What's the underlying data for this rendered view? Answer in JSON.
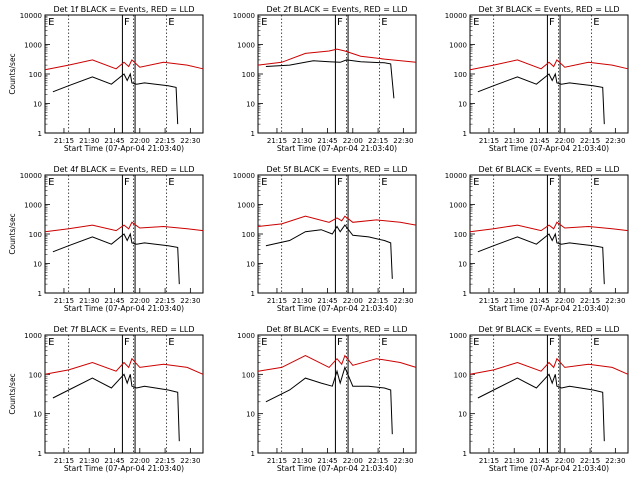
{
  "chart_data": [
    {
      "type": "line",
      "title": "Det 1f BLACK = Events, RED = LLD",
      "ylabel": "Counts/sec",
      "xlabel": "Start Time (07-Apr-04 21:03:40)",
      "ylim": [
        1,
        10000
      ],
      "yscale": "log",
      "yticks": [
        "1",
        "10",
        "100",
        "1000",
        "10000"
      ],
      "xticks": [
        "21:15",
        "21:30",
        "21:45",
        "22:00",
        "22:15",
        "22:30"
      ],
      "markers": [
        "E",
        "F",
        "E"
      ],
      "series": [
        {
          "color": "#000000",
          "x": [
            0.05,
            0.15,
            0.3,
            0.42,
            0.5,
            0.52,
            0.54,
            0.55,
            0.58,
            0.63,
            0.7,
            0.78,
            0.83,
            0.84
          ],
          "y": [
            25,
            40,
            80,
            45,
            100,
            60,
            100,
            50,
            45,
            50,
            45,
            40,
            35,
            2
          ]
        },
        {
          "color": "#cc0000",
          "x": [
            0.0,
            0.15,
            0.3,
            0.45,
            0.5,
            0.53,
            0.55,
            0.6,
            0.75,
            0.9,
            1.0
          ],
          "y": [
            140,
            200,
            300,
            150,
            250,
            180,
            300,
            170,
            250,
            200,
            150
          ]
        }
      ]
    },
    {
      "type": "line",
      "title": "Det 2f BLACK = Events, RED = LLD",
      "ylabel": "",
      "xlabel": "Start Time (07-Apr-04 21:03:40)",
      "ylim": [
        1,
        10000
      ],
      "yscale": "log",
      "yticks": [
        "1",
        "10",
        "100",
        "1000",
        "10000"
      ],
      "xticks": [
        "21:15",
        "21:30",
        "21:45",
        "22:00",
        "22:15",
        "22:30"
      ],
      "markers": [
        "E",
        "F",
        "E"
      ],
      "series": [
        {
          "color": "#000000",
          "x": [
            0.05,
            0.2,
            0.35,
            0.45,
            0.52,
            0.56,
            0.65,
            0.8,
            0.84,
            0.86
          ],
          "y": [
            180,
            200,
            280,
            260,
            250,
            300,
            260,
            240,
            220,
            15
          ]
        },
        {
          "color": "#cc0000",
          "x": [
            0.0,
            0.15,
            0.3,
            0.45,
            0.5,
            0.55,
            0.65,
            0.8,
            1.0
          ],
          "y": [
            200,
            250,
            500,
            600,
            700,
            600,
            400,
            320,
            250
          ]
        }
      ]
    },
    {
      "type": "line",
      "title": "Det 3f BLACK = Events, RED = LLD",
      "ylabel": "",
      "xlabel": "Start Time (07-Apr-04 21:03:40)",
      "ylim": [
        1,
        10000
      ],
      "yscale": "log",
      "yticks": [
        "1",
        "10",
        "100",
        "1000",
        "10000"
      ],
      "xticks": [
        "21:15",
        "21:30",
        "21:45",
        "22:00",
        "22:15",
        "22:30"
      ],
      "markers": [
        "E",
        "F",
        "E"
      ],
      "series": [
        {
          "color": "#000000",
          "x": [
            0.05,
            0.15,
            0.3,
            0.42,
            0.5,
            0.52,
            0.54,
            0.55,
            0.58,
            0.63,
            0.7,
            0.78,
            0.84,
            0.85
          ],
          "y": [
            25,
            40,
            80,
            45,
            100,
            60,
            100,
            50,
            45,
            50,
            45,
            40,
            35,
            2
          ]
        },
        {
          "color": "#cc0000",
          "x": [
            0.0,
            0.15,
            0.3,
            0.45,
            0.5,
            0.53,
            0.55,
            0.6,
            0.75,
            0.9,
            1.0
          ],
          "y": [
            140,
            200,
            300,
            150,
            250,
            180,
            300,
            170,
            250,
            200,
            150
          ]
        }
      ]
    },
    {
      "type": "line",
      "title": "Det 4f BLACK = Events, RED = LLD",
      "ylabel": "Counts/sec",
      "xlabel": "Start Time (07-Apr-04 21:03:40)",
      "ylim": [
        1,
        10000
      ],
      "yscale": "log",
      "yticks": [
        "1",
        "10",
        "100",
        "1000",
        "10000"
      ],
      "xticks": [
        "21:15",
        "21:30",
        "21:45",
        "22:00",
        "22:15",
        "22:30"
      ],
      "markers": [
        "E",
        "F",
        "E"
      ],
      "series": [
        {
          "color": "#000000",
          "x": [
            0.05,
            0.15,
            0.3,
            0.42,
            0.5,
            0.52,
            0.54,
            0.55,
            0.58,
            0.63,
            0.7,
            0.78,
            0.84,
            0.85
          ],
          "y": [
            25,
            40,
            80,
            45,
            100,
            60,
            100,
            50,
            45,
            50,
            45,
            40,
            35,
            2
          ]
        },
        {
          "color": "#cc0000",
          "x": [
            0.0,
            0.15,
            0.3,
            0.45,
            0.5,
            0.53,
            0.55,
            0.6,
            0.75,
            0.9,
            1.0
          ],
          "y": [
            120,
            150,
            200,
            130,
            200,
            150,
            250,
            160,
            180,
            150,
            130
          ]
        }
      ]
    },
    {
      "type": "line",
      "title": "Det 5f BLACK = Events, RED = LLD",
      "ylabel": "",
      "xlabel": "Start Time (07-Apr-04 21:03:40)",
      "ylim": [
        1,
        10000
      ],
      "yscale": "log",
      "yticks": [
        "1",
        "10",
        "100",
        "1000",
        "10000"
      ],
      "xticks": [
        "21:15",
        "21:30",
        "21:45",
        "22:00",
        "22:15",
        "22:30"
      ],
      "markers": [
        "E",
        "F",
        "E"
      ],
      "series": [
        {
          "color": "#000000",
          "x": [
            0.05,
            0.2,
            0.3,
            0.4,
            0.47,
            0.5,
            0.52,
            0.55,
            0.6,
            0.7,
            0.8,
            0.84,
            0.85
          ],
          "y": [
            40,
            60,
            120,
            140,
            100,
            180,
            120,
            200,
            90,
            80,
            60,
            50,
            3
          ]
        },
        {
          "color": "#cc0000",
          "x": [
            0.0,
            0.15,
            0.3,
            0.45,
            0.5,
            0.53,
            0.55,
            0.6,
            0.75,
            0.9,
            1.0
          ],
          "y": [
            180,
            220,
            400,
            250,
            350,
            280,
            400,
            250,
            300,
            250,
            200
          ]
        }
      ]
    },
    {
      "type": "line",
      "title": "Det 6f BLACK = Events, RED = LLD",
      "ylabel": "",
      "xlabel": "Start Time (07-Apr-04 21:03:40)",
      "ylim": [
        1,
        10000
      ],
      "yscale": "log",
      "yticks": [
        "1",
        "10",
        "100",
        "1000",
        "10000"
      ],
      "xticks": [
        "21:15",
        "21:30",
        "21:45",
        "22:00",
        "22:15",
        "22:30"
      ],
      "markers": [
        "E",
        "F",
        "E"
      ],
      "series": [
        {
          "color": "#000000",
          "x": [
            0.05,
            0.15,
            0.3,
            0.42,
            0.5,
            0.52,
            0.54,
            0.55,
            0.58,
            0.63,
            0.7,
            0.78,
            0.84,
            0.85
          ],
          "y": [
            25,
            40,
            80,
            45,
            100,
            60,
            100,
            50,
            45,
            50,
            45,
            40,
            35,
            2
          ]
        },
        {
          "color": "#cc0000",
          "x": [
            0.0,
            0.15,
            0.3,
            0.45,
            0.5,
            0.53,
            0.55,
            0.6,
            0.75,
            0.9,
            1.0
          ],
          "y": [
            120,
            150,
            200,
            130,
            200,
            150,
            250,
            160,
            180,
            150,
            130
          ]
        }
      ]
    },
    {
      "type": "line",
      "title": "Det 7f BLACK = Events, RED = LLD",
      "ylabel": "Counts/sec",
      "xlabel": "Start Time (07-Apr-04 21:03:40)",
      "ylim": [
        1,
        1000
      ],
      "yscale": "log",
      "yticks": [
        "1",
        "10",
        "100",
        "1000"
      ],
      "xticks": [
        "21:15",
        "21:30",
        "21:45",
        "22:00",
        "22:15",
        "22:30"
      ],
      "markers": [
        "E",
        "F",
        "E"
      ],
      "series": [
        {
          "color": "#000000",
          "x": [
            0.05,
            0.15,
            0.3,
            0.42,
            0.5,
            0.52,
            0.54,
            0.55,
            0.58,
            0.63,
            0.7,
            0.78,
            0.84,
            0.85
          ],
          "y": [
            25,
            40,
            80,
            45,
            100,
            60,
            100,
            50,
            45,
            50,
            45,
            40,
            35,
            2
          ]
        },
        {
          "color": "#cc0000",
          "x": [
            0.0,
            0.15,
            0.3,
            0.45,
            0.5,
            0.53,
            0.55,
            0.6,
            0.75,
            0.9,
            1.0
          ],
          "y": [
            100,
            130,
            200,
            120,
            200,
            150,
            250,
            150,
            180,
            150,
            100
          ]
        }
      ]
    },
    {
      "type": "line",
      "title": "Det 8f BLACK = Events, RED = LLD",
      "ylabel": "",
      "xlabel": "Start Time (07-Apr-04 21:03:40)",
      "ylim": [
        1,
        1000
      ],
      "yscale": "log",
      "yticks": [
        "1",
        "10",
        "100",
        "1000"
      ],
      "xticks": [
        "21:15",
        "21:30",
        "21:45",
        "22:00",
        "22:15",
        "22:30"
      ],
      "markers": [
        "E",
        "F",
        "E"
      ],
      "series": [
        {
          "color": "#000000",
          "x": [
            0.05,
            0.2,
            0.3,
            0.4,
            0.47,
            0.5,
            0.52,
            0.55,
            0.6,
            0.7,
            0.8,
            0.84,
            0.85
          ],
          "y": [
            20,
            40,
            80,
            60,
            50,
            120,
            60,
            150,
            50,
            50,
            45,
            40,
            3
          ]
        },
        {
          "color": "#cc0000",
          "x": [
            0.0,
            0.15,
            0.3,
            0.45,
            0.5,
            0.53,
            0.55,
            0.6,
            0.75,
            0.9,
            1.0
          ],
          "y": [
            120,
            150,
            300,
            150,
            250,
            180,
            300,
            170,
            250,
            200,
            150
          ]
        }
      ]
    },
    {
      "type": "line",
      "title": "Det 9f BLACK = Events, RED = LLD",
      "ylabel": "",
      "xlabel": "Start Time (07-Apr-04 21:03:40)",
      "ylim": [
        1,
        1000
      ],
      "yscale": "log",
      "yticks": [
        "1",
        "10",
        "100",
        "1000"
      ],
      "xticks": [
        "21:15",
        "21:30",
        "21:45",
        "22:00",
        "22:15",
        "22:30"
      ],
      "markers": [
        "E",
        "F",
        "E"
      ],
      "series": [
        {
          "color": "#000000",
          "x": [
            0.05,
            0.15,
            0.3,
            0.42,
            0.5,
            0.52,
            0.54,
            0.55,
            0.58,
            0.63,
            0.7,
            0.78,
            0.84,
            0.85
          ],
          "y": [
            25,
            40,
            80,
            45,
            100,
            60,
            100,
            50,
            45,
            50,
            45,
            40,
            35,
            2
          ]
        },
        {
          "color": "#cc0000",
          "x": [
            0.0,
            0.15,
            0.3,
            0.45,
            0.5,
            0.53,
            0.55,
            0.6,
            0.75,
            0.9,
            1.0
          ],
          "y": [
            100,
            130,
            200,
            120,
            200,
            150,
            250,
            150,
            180,
            150,
            100
          ]
        }
      ]
    }
  ]
}
